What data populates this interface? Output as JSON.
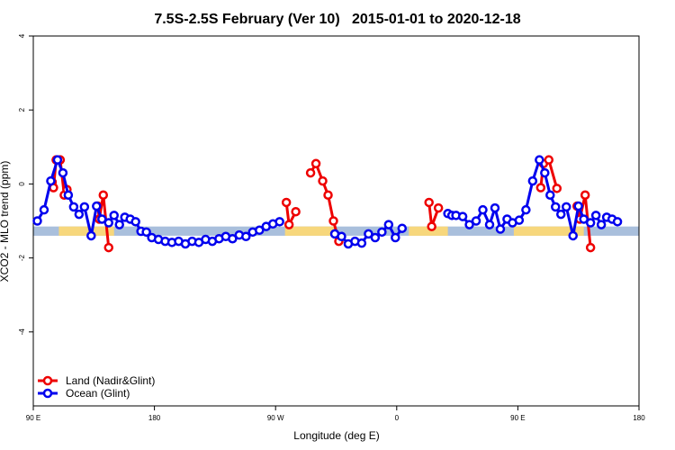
{
  "chart_data": {
    "type": "line",
    "title": "7.5S-2.5S February (Ver 10)   2015-01-01 to 2020-12-18",
    "xlabel": "Longitude (deg E)",
    "ylabel": "XCO2 - MLO trend (ppm)",
    "xlim": [
      90,
      540
    ],
    "ylim": [
      -6,
      4
    ],
    "x_ticks": [
      {
        "value": 90,
        "label": "90 E"
      },
      {
        "value": 180,
        "label": "180"
      },
      {
        "value": 270,
        "label": "90 W"
      },
      {
        "value": 360,
        "label": "0"
      },
      {
        "value": 450,
        "label": "90 E"
      },
      {
        "value": 540,
        "label": "180"
      }
    ],
    "y_ticks": [
      {
        "value": -4,
        "label": "-4"
      },
      {
        "value": -2,
        "label": "-2"
      },
      {
        "value": 0,
        "label": "0"
      },
      {
        "value": 2,
        "label": "2"
      },
      {
        "value": 4,
        "label": "4"
      }
    ],
    "legend_position": "bottom-left",
    "band": {
      "y_range": [
        -1.4,
        -1.15
      ],
      "ocean_color": "#a9bfdc",
      "land_color": "#f7d77c",
      "land_segments": [
        [
          109,
          150
        ],
        [
          277,
          315
        ],
        [
          369,
          398
        ],
        [
          447,
          499
        ]
      ]
    },
    "series": [
      {
        "name": "Land (Nadir&Glint)",
        "color": "#ee0000",
        "segments": [
          [
            [
              104,
              0.05
            ],
            [
              105,
              -0.1
            ],
            [
              107,
              0.65
            ],
            [
              110,
              0.65
            ],
            [
              113,
              -0.3
            ],
            [
              115,
              -0.15
            ]
          ],
          [
            [
              138,
              -0.6
            ],
            [
              139,
              -0.95
            ],
            [
              142,
              -0.3
            ],
            [
              146,
              -1.72
            ]
          ],
          [
            [
              278,
              -0.5
            ],
            [
              280,
              -1.1
            ],
            [
              285,
              -0.75
            ]
          ],
          [
            [
              296,
              0.3
            ],
            [
              300,
              0.55
            ],
            [
              305,
              0.08
            ],
            [
              309,
              -0.3
            ],
            [
              313,
              -1.0
            ],
            [
              317,
              -1.55
            ]
          ],
          [
            [
              384,
              -0.5
            ],
            [
              386,
              -1.15
            ],
            [
              391,
              -0.65
            ]
          ],
          [
            [
              467,
              -0.1
            ],
            [
              469,
              0.55
            ],
            [
              473,
              0.65
            ],
            [
              479,
              -0.12
            ]
          ],
          [
            [
              494,
              -0.6
            ],
            [
              496,
              -0.95
            ],
            [
              500,
              -0.3
            ],
            [
              504,
              -1.72
            ]
          ]
        ]
      },
      {
        "name": "Ocean (Glint)",
        "color": "#0000ee",
        "segments": [
          [
            [
              93,
              -1.0
            ],
            [
              98,
              -0.7
            ],
            [
              103,
              0.08
            ],
            [
              108,
              0.65
            ],
            [
              112,
              0.3
            ],
            [
              116,
              -0.3
            ],
            [
              120,
              -0.62
            ],
            [
              124,
              -0.82
            ],
            [
              128,
              -0.62
            ],
            [
              133,
              -1.4
            ],
            [
              137,
              -0.6
            ],
            [
              141,
              -0.95
            ],
            [
              146,
              -1.05
            ],
            [
              150,
              -0.85
            ],
            [
              154,
              -1.1
            ],
            [
              158,
              -0.9
            ],
            [
              162,
              -0.95
            ],
            [
              166,
              -1.02
            ],
            [
              170,
              -1.28
            ],
            [
              174,
              -1.3
            ],
            [
              178,
              -1.45
            ],
            [
              183,
              -1.5
            ],
            [
              188,
              -1.55
            ],
            [
              193,
              -1.58
            ],
            [
              198,
              -1.55
            ],
            [
              203,
              -1.62
            ],
            [
              208,
              -1.55
            ],
            [
              213,
              -1.58
            ],
            [
              218,
              -1.5
            ],
            [
              223,
              -1.55
            ],
            [
              228,
              -1.48
            ],
            [
              233,
              -1.42
            ],
            [
              238,
              -1.48
            ],
            [
              243,
              -1.38
            ],
            [
              248,
              -1.42
            ],
            [
              253,
              -1.3
            ],
            [
              258,
              -1.25
            ],
            [
              263,
              -1.15
            ],
            [
              268,
              -1.08
            ],
            [
              273,
              -1.02
            ]
          ],
          [
            [
              314,
              -1.35
            ],
            [
              319,
              -1.42
            ],
            [
              324,
              -1.62
            ],
            [
              329,
              -1.55
            ],
            [
              334,
              -1.6
            ],
            [
              339,
              -1.35
            ],
            [
              344,
              -1.45
            ],
            [
              349,
              -1.3
            ],
            [
              354,
              -1.1
            ],
            [
              359,
              -1.45
            ],
            [
              364,
              -1.2
            ]
          ],
          [
            [
              398,
              -0.8
            ],
            [
              401,
              -0.85
            ],
            [
              404,
              -0.85
            ],
            [
              409,
              -0.88
            ],
            [
              414,
              -1.1
            ],
            [
              419,
              -1.0
            ],
            [
              424,
              -0.7
            ],
            [
              429,
              -1.1
            ],
            [
              433,
              -0.65
            ],
            [
              437,
              -1.22
            ],
            [
              442,
              -0.95
            ],
            [
              446,
              -1.05
            ],
            [
              451,
              -0.98
            ],
            [
              456,
              -0.7
            ],
            [
              461,
              0.08
            ],
            [
              466,
              0.65
            ],
            [
              470,
              0.3
            ],
            [
              474,
              -0.3
            ],
            [
              478,
              -0.62
            ],
            [
              482,
              -0.82
            ],
            [
              486,
              -0.62
            ],
            [
              491,
              -1.4
            ],
            [
              495,
              -0.6
            ],
            [
              499,
              -0.95
            ],
            [
              504,
              -1.05
            ],
            [
              508,
              -0.85
            ],
            [
              512,
              -1.1
            ],
            [
              516,
              -0.9
            ],
            [
              520,
              -0.95
            ],
            [
              524,
              -1.02
            ]
          ]
        ]
      }
    ]
  }
}
